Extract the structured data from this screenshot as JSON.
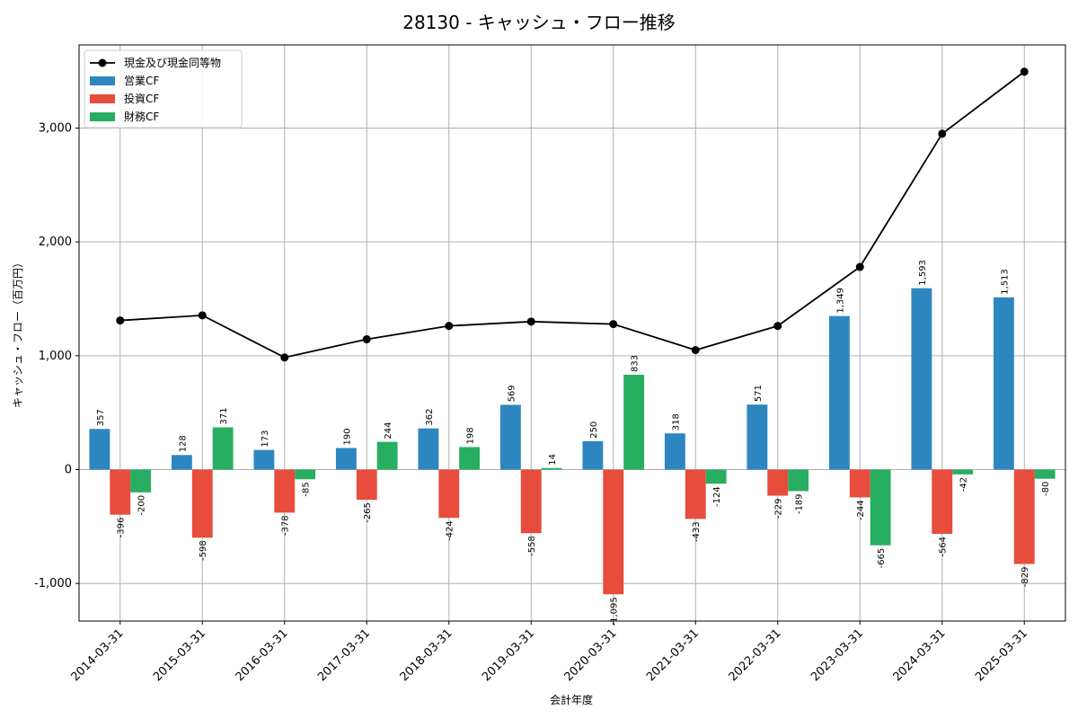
{
  "chart_data": {
    "type": "bar",
    "title": "28130 - キャッシュ・フロー推移",
    "xlabel": "会計年度",
    "ylabel": "キャッシュ・フロー（百万円）",
    "categories": [
      "2014-03-31",
      "2015-03-31",
      "2016-03-31",
      "2017-03-31",
      "2018-03-31",
      "2019-03-31",
      "2020-03-31",
      "2021-03-31",
      "2022-03-31",
      "2023-03-31",
      "2024-03-31",
      "2025-03-31"
    ],
    "ylim": [
      -1330,
      3730
    ],
    "yticks": [
      -1000,
      0,
      1000,
      2000,
      3000
    ],
    "ytick_labels": [
      "-1,000",
      "0",
      "1,000",
      "2,000",
      "3,000"
    ],
    "grid": true,
    "legend_position": "top-left",
    "series": [
      {
        "name": "営業CF",
        "kind": "bar",
        "color": "#2e86c1",
        "values": [
          357,
          128,
          173,
          190,
          362,
          569,
          250,
          318,
          571,
          1349,
          1593,
          1513
        ],
        "labels": [
          "357",
          "128",
          "173",
          "190",
          "362",
          "569",
          "250",
          "318",
          "571",
          "1,349",
          "1,593",
          "1,513"
        ]
      },
      {
        "name": "投資CF",
        "kind": "bar",
        "color": "#e74c3c",
        "values": [
          -396,
          -598,
          -378,
          -265,
          -424,
          -558,
          -1095,
          -433,
          -229,
          -244,
          -564,
          -829
        ],
        "labels": [
          "-396",
          "-598",
          "-378",
          "-265",
          "-424",
          "-558",
          "-1,095",
          "-433",
          "-229",
          "-244",
          "-564",
          "-829"
        ]
      },
      {
        "name": "財務CF",
        "kind": "bar",
        "color": "#27ae60",
        "values": [
          -200,
          371,
          -85,
          244,
          198,
          14,
          833,
          -124,
          -189,
          -665,
          -42,
          -80
        ],
        "labels": [
          "-200",
          "371",
          "-85",
          "244",
          "198",
          "14",
          "833",
          "-124",
          "-189",
          "-665",
          "-42",
          "-80"
        ]
      },
      {
        "name": "現金及び現金同等物",
        "kind": "line",
        "color": "#000000",
        "values": [
          1310,
          1355,
          985,
          1145,
          1262,
          1300,
          1278,
          1050,
          1262,
          1780,
          2950,
          3495
        ]
      }
    ]
  }
}
